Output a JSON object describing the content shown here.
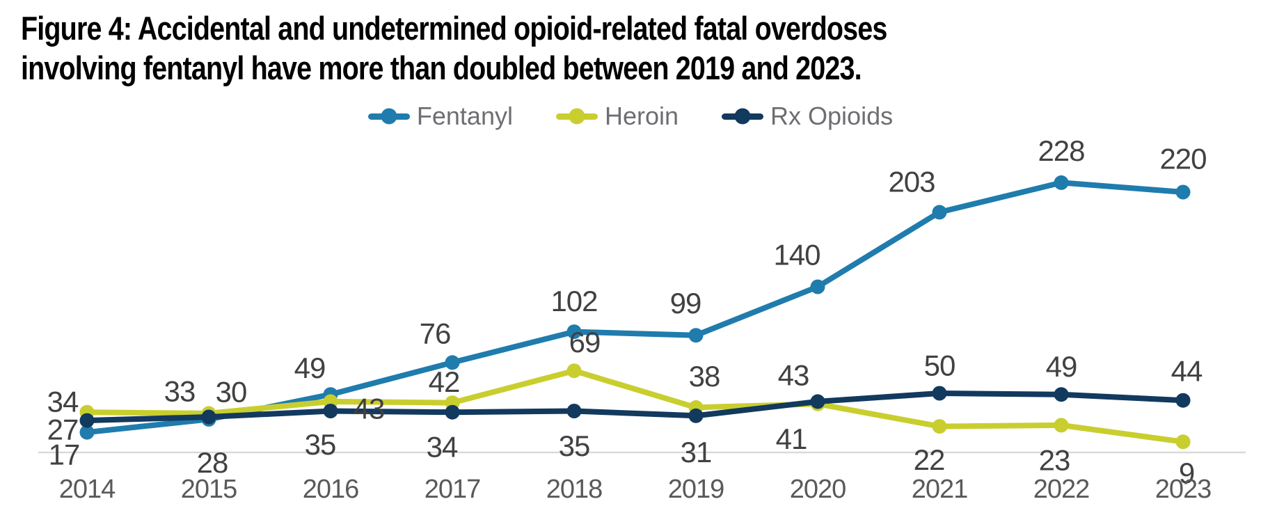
{
  "title": {
    "line1": "Figure 4: Accidental and undetermined opioid-related fatal overdoses",
    "line2": "involving fentanyl have more than doubled between 2019 and 2023."
  },
  "legend": {
    "items": [
      {
        "label": "Fentanyl",
        "color": "#1F7CAD"
      },
      {
        "label": "Heroin",
        "color": "#C9CE2F"
      },
      {
        "label": "Rx Opioids",
        "color": "#12395E"
      }
    ],
    "position": "top-center"
  },
  "chart_data": {
    "type": "line",
    "title": "Figure 4: Accidental and undetermined opioid-related fatal overdoses involving fentanyl have more than doubled between 2019 and 2023.",
    "x": [
      "2014",
      "2015",
      "2016",
      "2017",
      "2018",
      "2019",
      "2020",
      "2021",
      "2022",
      "2023"
    ],
    "series": [
      {
        "name": "Fentanyl",
        "color": "#1F7CAD",
        "values": [
          17,
          28,
          49,
          76,
          102,
          99,
          140,
          203,
          228,
          220
        ],
        "label_offsets": [
          [
            -33,
            32
          ],
          [
            5,
            62
          ],
          [
            -30,
            -38
          ],
          [
            -25,
            -42
          ],
          [
            0,
            -44
          ],
          [
            -15,
            -46
          ],
          [
            -30,
            -46
          ],
          [
            -40,
            -44
          ],
          [
            0,
            -46
          ],
          [
            0,
            -48
          ]
        ]
      },
      {
        "name": "Heroin",
        "color": "#C9CE2F",
        "values": [
          34,
          33,
          43,
          42,
          69,
          38,
          41,
          22,
          23,
          9
        ],
        "label_offsets": [
          [
            -35,
            -15
          ],
          [
            -42,
            -32
          ],
          [
            55,
            10
          ],
          [
            -12,
            -30
          ],
          [
            15,
            -41
          ],
          [
            12,
            -45
          ],
          [
            -38,
            50
          ],
          [
            -15,
            48
          ],
          [
            -10,
            50
          ],
          [
            5,
            45
          ]
        ]
      },
      {
        "name": "Rx Opioids",
        "color": "#12395E",
        "values": [
          27,
          30,
          35,
          34,
          35,
          31,
          43,
          50,
          49,
          44
        ],
        "label_offsets": [
          [
            -35,
            13
          ],
          [
            32,
            -36
          ],
          [
            -15,
            48
          ],
          [
            -15,
            50
          ],
          [
            0,
            50
          ],
          [
            0,
            52
          ],
          [
            -35,
            -38
          ],
          [
            0,
            -40
          ],
          [
            0,
            -40
          ],
          [
            5,
            -42
          ]
        ]
      }
    ],
    "ylim": [
      0,
      240
    ],
    "xlabel": "",
    "ylabel": "",
    "grid": false,
    "legend_position": "top",
    "value_labels_shown": true,
    "value_label_color": "#414042",
    "axis_tick_color": "#58595B",
    "axis_line_color": "#D9D9D9"
  }
}
